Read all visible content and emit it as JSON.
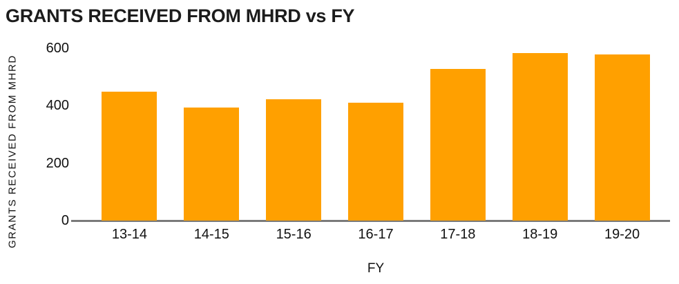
{
  "colors": {
    "bar": "#FFA000",
    "axis_line": "#7A7A7A",
    "text": "#111111",
    "background": "#FFFFFF"
  },
  "chart_data": {
    "type": "bar",
    "title": "GRANTS RECEIVED FROM MHRD vs FY",
    "xlabel": "FY",
    "ylabel": "GRANTS RECEIVED FROM MHRD",
    "categories": [
      "13-14",
      "14-15",
      "15-16",
      "16-17",
      "17-18",
      "18-19",
      "19-20"
    ],
    "values": [
      450,
      393,
      423,
      411,
      527,
      583,
      579
    ],
    "ylim": [
      0,
      600
    ],
    "yticks": [
      0,
      200,
      400,
      600
    ],
    "grid": false,
    "legend": false,
    "bar_color": "#FFA000"
  }
}
